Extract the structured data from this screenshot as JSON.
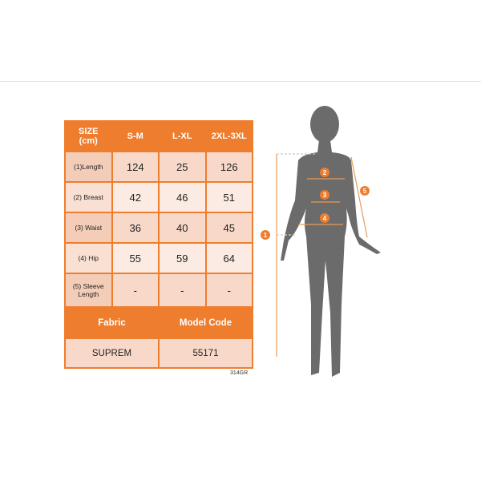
{
  "size_table": {
    "header": [
      "SIZE\n(cm)",
      "S-M",
      "L-XL",
      "2XL-3XL"
    ],
    "header_line1": "SIZE",
    "header_line2": "(cm)",
    "rows": [
      {
        "label": "(1)Length",
        "values": [
          "124",
          "25",
          "126"
        ]
      },
      {
        "label": "(2) Breast",
        "values": [
          "42",
          "46",
          "51"
        ]
      },
      {
        "label": "(3) Waist",
        "values": [
          "36",
          "40",
          "45"
        ]
      },
      {
        "label": "(4) Hip",
        "values": [
          "55",
          "59",
          "64"
        ]
      },
      {
        "label": "(5) Sleeve Length",
        "values": [
          "-",
          "-",
          "-"
        ]
      }
    ],
    "fabric_label": "Fabric",
    "model_code_label": "Model Code",
    "fabric_value": "SUPREM",
    "model_code_value": "55171"
  },
  "product_code": "314GR",
  "figure": {
    "markers": [
      "1",
      "2",
      "3",
      "4",
      "5"
    ],
    "accent_color": "#ee7d2e",
    "silhouette_color": "#6b6b6b"
  }
}
